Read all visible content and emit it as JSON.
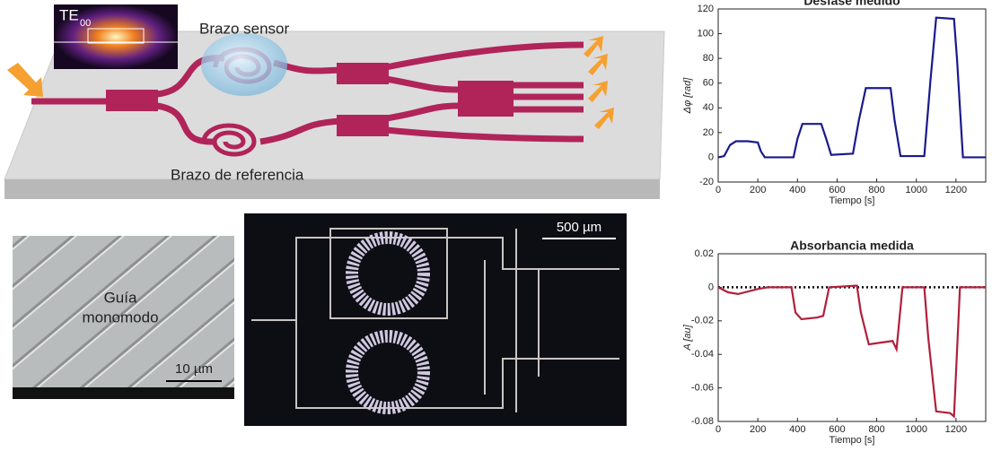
{
  "diagram": {
    "mode_label": "TE",
    "mode_subscript": "00",
    "sensor_arm": "Brazo sensor",
    "reference_arm": "Brazo de referencia",
    "sem_label_1": "Guía",
    "sem_label_2": "monomodo",
    "sem_scale": "10 µm",
    "micro_scale": "500 µm"
  },
  "chart_data": [
    {
      "type": "line",
      "title": "Desfase medido",
      "x_label": "Tiempo [s]",
      "y_label": "Δφ [rad]",
      "x": [
        0,
        30,
        60,
        90,
        150,
        200,
        215,
        235,
        380,
        400,
        425,
        520,
        545,
        570,
        680,
        710,
        745,
        870,
        890,
        920,
        1040,
        1070,
        1100,
        1190,
        1205,
        1235,
        1350
      ],
      "series": [
        {
          "color": "#1a1a8c",
          "values": [
            0,
            1,
            10,
            13,
            13,
            12,
            5,
            0,
            0,
            15,
            27,
            27,
            15,
            2,
            3,
            30,
            56,
            56,
            30,
            1,
            1,
            60,
            113,
            112,
            80,
            0,
            0
          ]
        }
      ],
      "xlim": [
        0,
        1350
      ],
      "ylim": [
        -20,
        120
      ],
      "xticks": [
        0,
        200,
        400,
        600,
        800,
        1000,
        1200
      ],
      "yticks": [
        -20,
        0,
        20,
        40,
        60,
        80,
        100,
        120
      ]
    },
    {
      "type": "line",
      "title": "Absorbancia medida",
      "x_label": "Tiempo [s]",
      "y_label": "A [au]",
      "x": [
        0,
        50,
        100,
        200,
        250,
        370,
        390,
        420,
        500,
        530,
        560,
        700,
        720,
        760,
        880,
        900,
        930,
        1040,
        1060,
        1100,
        1170,
        1190,
        1220,
        1350
      ],
      "series": [
        {
          "color": "#b0203c",
          "values": [
            0,
            -0.003,
            -0.004,
            -0.001,
            0,
            0,
            -0.015,
            -0.019,
            -0.018,
            -0.017,
            0,
            0.001,
            -0.015,
            -0.034,
            -0.032,
            -0.037,
            0,
            0,
            -0.03,
            -0.074,
            -0.075,
            -0.077,
            0,
            0
          ]
        }
      ],
      "reference_line": 0,
      "xlim": [
        0,
        1350
      ],
      "ylim": [
        -0.08,
        0.02
      ],
      "xticks": [
        0,
        200,
        400,
        600,
        800,
        1000,
        1200
      ],
      "yticks": [
        0.02,
        0,
        -0.02,
        -0.04,
        -0.06,
        -0.08
      ]
    }
  ]
}
